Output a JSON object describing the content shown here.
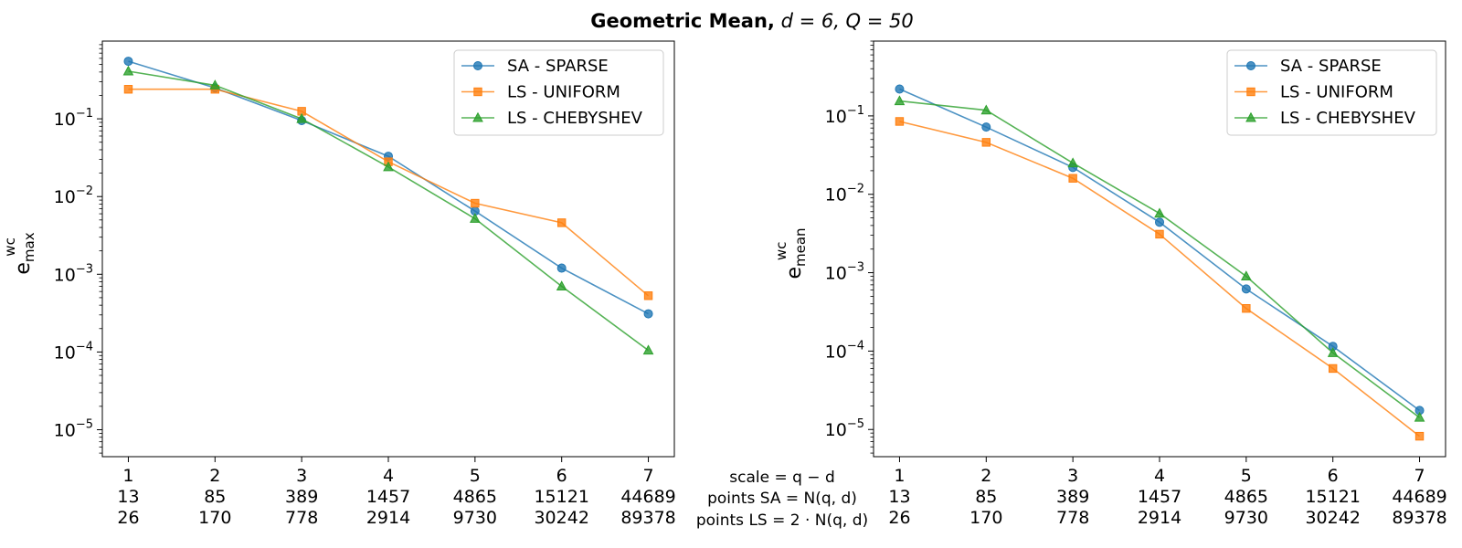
{
  "figure": {
    "title_bold": "Geometric Mean,",
    "title_math": "d = 6, Q = 50",
    "center_labels": [
      "scale = q − d",
      "points SA = N(q, d)",
      "points LS = 2 · N(q, d)"
    ]
  },
  "chart_data": [
    {
      "type": "line",
      "yscale": "log",
      "ylabel": "e^wc_max",
      "ylabel_base": "e",
      "ylabel_sup": "wc",
      "ylabel_sub": "max",
      "ylim": [
        4.5e-06,
        1.0
      ],
      "yticks": [
        {
          "base": "10",
          "exp": "−1",
          "value": 0.1
        },
        {
          "base": "10",
          "exp": "−2",
          "value": 0.01
        },
        {
          "base": "10",
          "exp": "−3",
          "value": 0.001
        },
        {
          "base": "10",
          "exp": "−4",
          "value": 0.0001
        },
        {
          "base": "10",
          "exp": "−5",
          "value": 1e-05
        }
      ],
      "x": [
        1,
        2,
        3,
        4,
        5,
        6,
        7
      ],
      "xlim": [
        0.7,
        7.3
      ],
      "xtick_rows": [
        [
          "1",
          "2",
          "3",
          "4",
          "5",
          "6",
          "7"
        ],
        [
          "13",
          "85",
          "389",
          "1457",
          "4865",
          "15121",
          "44689"
        ],
        [
          "26",
          "170",
          "778",
          "2914",
          "9730",
          "30242",
          "89378"
        ]
      ],
      "legend_position": "top-right",
      "series": [
        {
          "name": "SA - SPARSE",
          "color": "#1f77b4",
          "marker": "circle",
          "values": [
            0.55,
            0.25,
            0.095,
            0.033,
            0.0065,
            0.0012,
            0.00031
          ]
        },
        {
          "name": "LS - UNIFORM",
          "color": "#ff7f0e",
          "marker": "square",
          "values": [
            0.24,
            0.24,
            0.125,
            0.028,
            0.0082,
            0.0046,
            0.00053
          ]
        },
        {
          "name": "LS - CHEBYSHEV",
          "color": "#2ca02c",
          "marker": "triangle",
          "values": [
            0.41,
            0.27,
            0.1,
            0.024,
            0.0052,
            0.0007,
            0.000105
          ]
        }
      ]
    },
    {
      "type": "line",
      "yscale": "log",
      "ylabel": "e^wc_mean",
      "ylabel_base": "e",
      "ylabel_sup": "wc",
      "ylabel_sub": "mean",
      "ylim": [
        4.5e-06,
        0.9
      ],
      "yticks": [
        {
          "base": "10",
          "exp": "−1",
          "value": 0.1
        },
        {
          "base": "10",
          "exp": "−2",
          "value": 0.01
        },
        {
          "base": "10",
          "exp": "−3",
          "value": 0.001
        },
        {
          "base": "10",
          "exp": "−4",
          "value": 0.0001
        },
        {
          "base": "10",
          "exp": "−5",
          "value": 1e-05
        }
      ],
      "x": [
        1,
        2,
        3,
        4,
        5,
        6,
        7
      ],
      "xlim": [
        0.7,
        7.3
      ],
      "xtick_rows": [
        [
          "1",
          "2",
          "3",
          "4",
          "5",
          "6",
          "7"
        ],
        [
          "13",
          "85",
          "389",
          "1457",
          "4865",
          "15121",
          "44689"
        ],
        [
          "26",
          "170",
          "778",
          "2914",
          "9730",
          "30242",
          "89378"
        ]
      ],
      "legend_position": "top-right",
      "series": [
        {
          "name": "SA - SPARSE",
          "color": "#1f77b4",
          "marker": "circle",
          "values": [
            0.22,
            0.072,
            0.022,
            0.0044,
            0.00062,
            0.000115,
            1.75e-05
          ]
        },
        {
          "name": "LS - UNIFORM",
          "color": "#ff7f0e",
          "marker": "square",
          "values": [
            0.085,
            0.046,
            0.016,
            0.0031,
            0.00035,
            6e-05,
            8.2e-06
          ]
        },
        {
          "name": "LS - CHEBYSHEV",
          "color": "#2ca02c",
          "marker": "triangle",
          "values": [
            0.155,
            0.118,
            0.025,
            0.0057,
            0.0009,
            9.5e-05,
            1.42e-05
          ]
        }
      ]
    }
  ]
}
